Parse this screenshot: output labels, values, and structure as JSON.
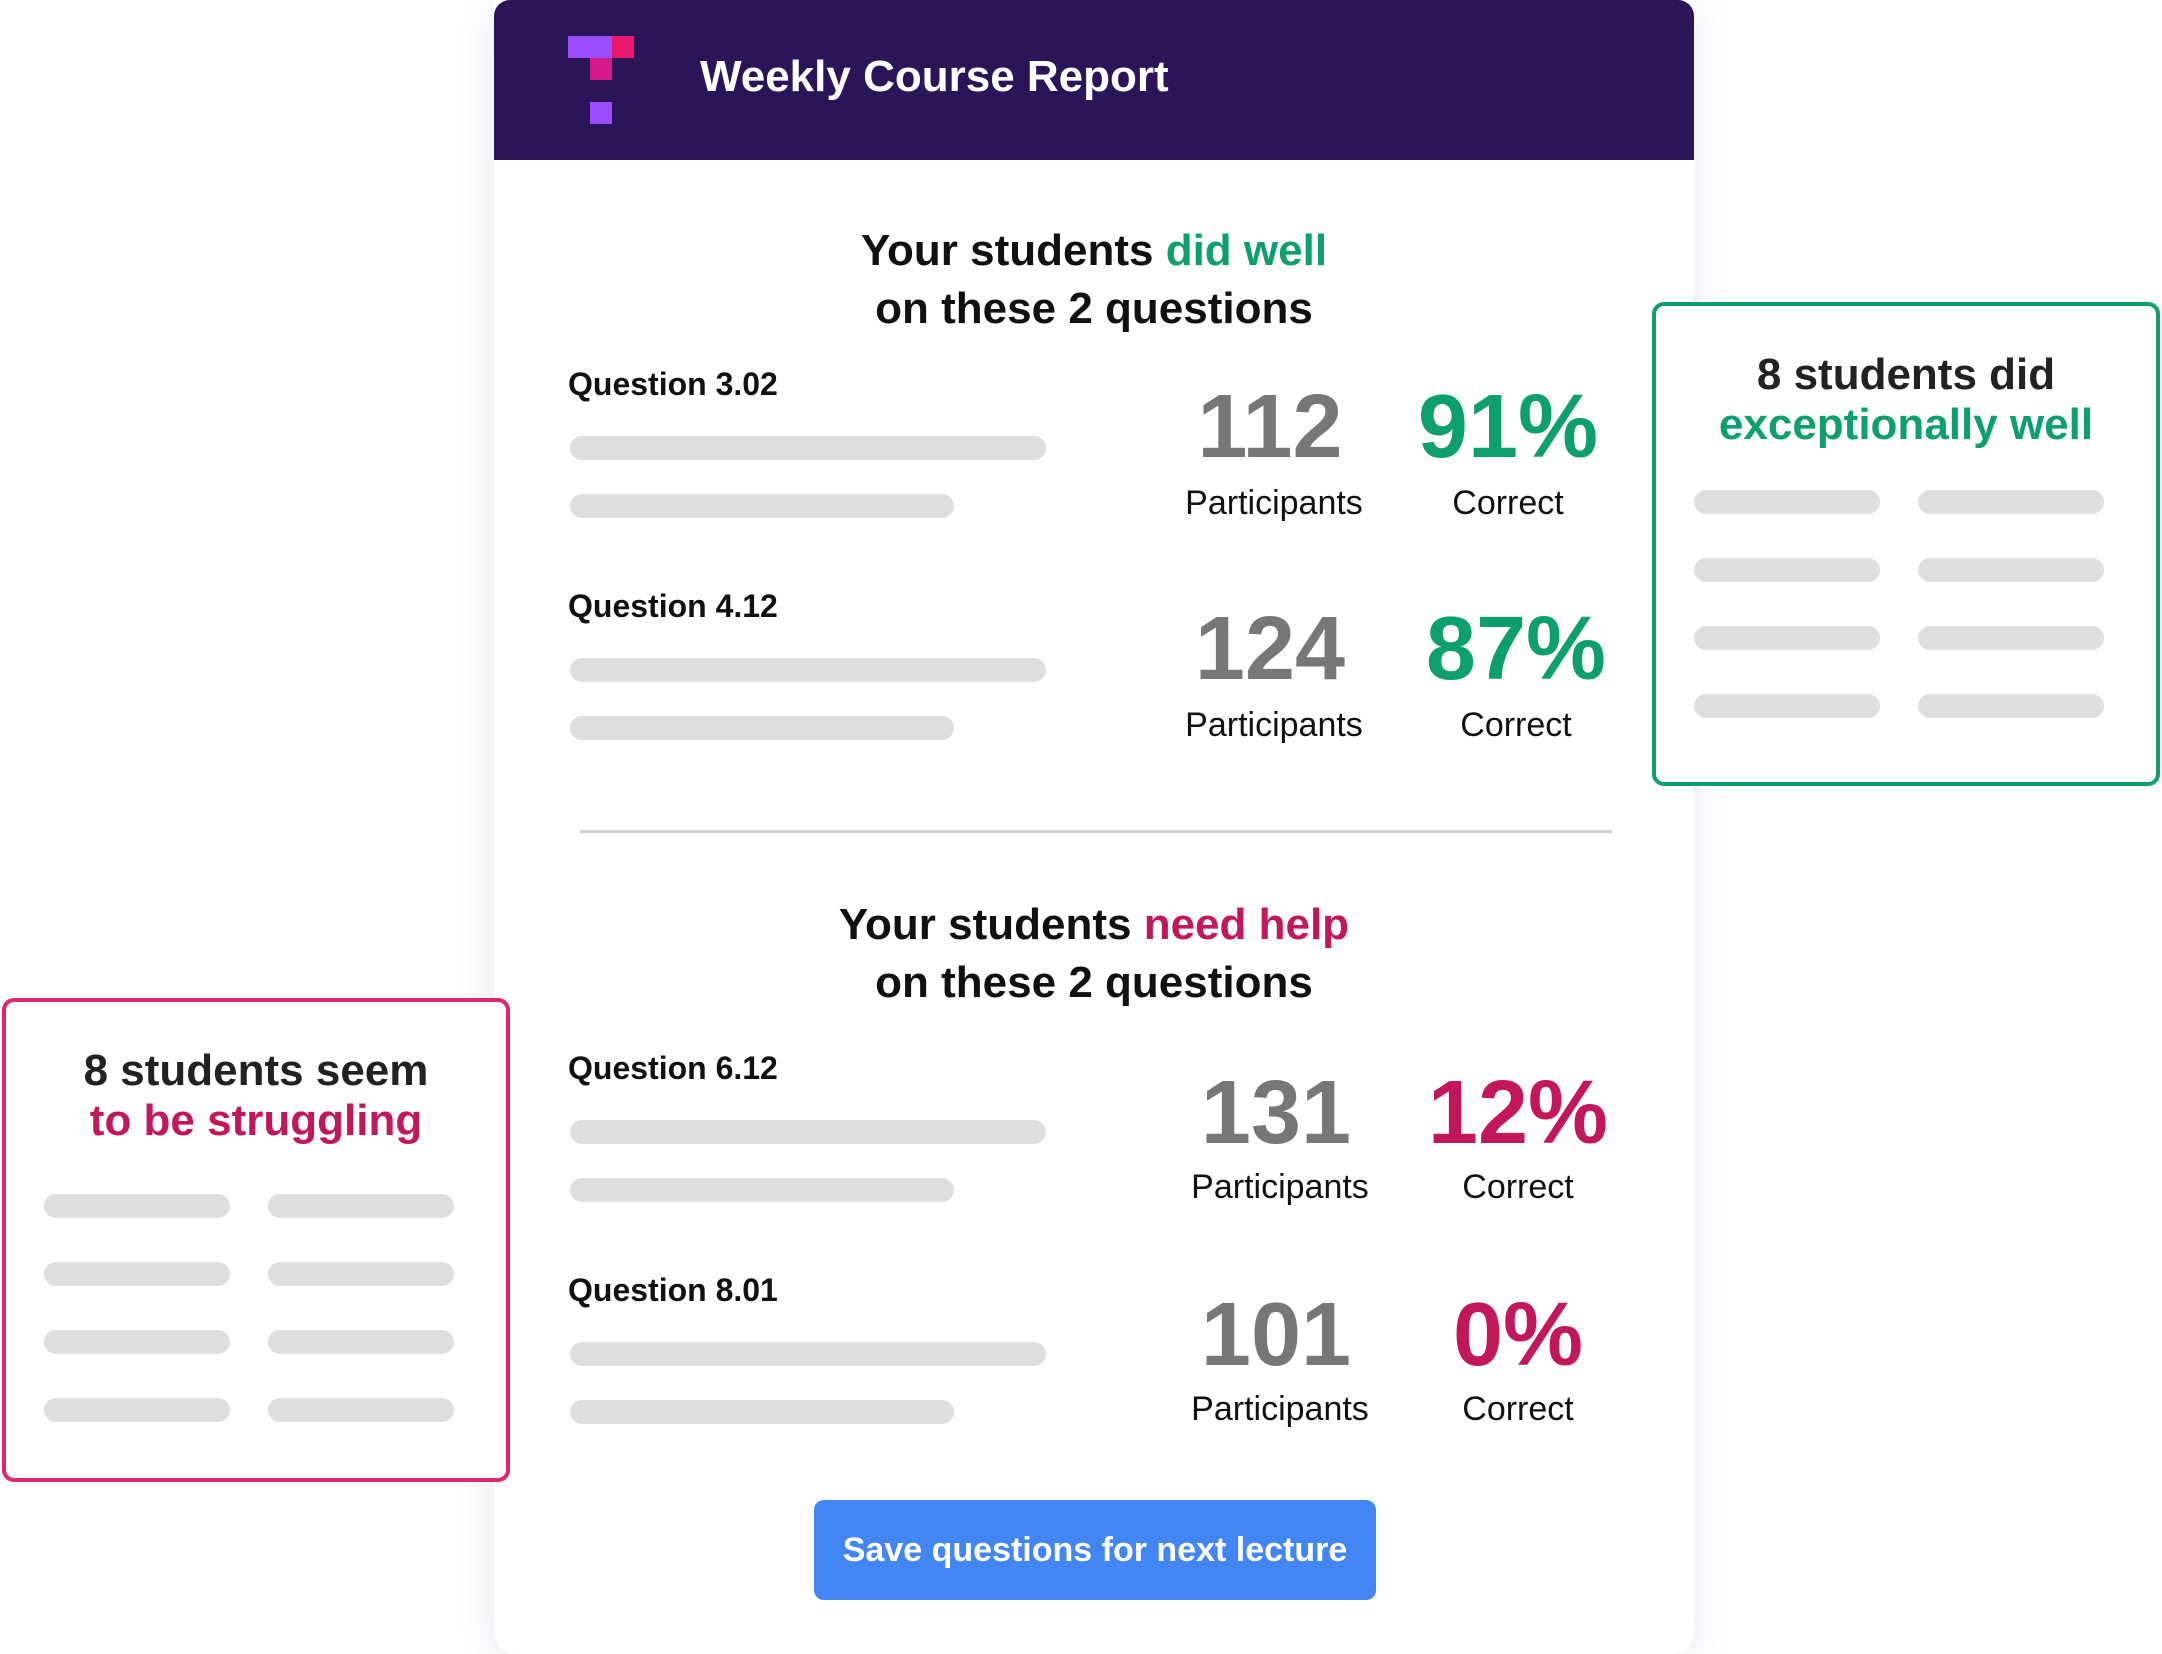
{
  "header": {
    "title": "Weekly Course Report",
    "logo_icon": "brand-logo-icon"
  },
  "colors": {
    "header_bg": "#2a1559",
    "good": "#0e9f6e",
    "bad": "#c2185b",
    "button": "#4286f4"
  },
  "good_section": {
    "heading_prefix": "Your students ",
    "heading_highlight": "did well",
    "heading_line2": "on these 2 questions",
    "questions": [
      {
        "label": "Question 3.02",
        "participants": "112",
        "participants_caption": "Participants",
        "correct": "91%",
        "correct_caption": "Correct"
      },
      {
        "label": "Question 4.12",
        "participants": "124",
        "participants_caption": "Participants",
        "correct": "87%",
        "correct_caption": "Correct"
      }
    ]
  },
  "bad_section": {
    "heading_prefix": "Your students ",
    "heading_highlight": "need help",
    "heading_line2": "on these 2 questions",
    "questions": [
      {
        "label": "Question 6.12",
        "participants": "131",
        "participants_caption": "Participants",
        "correct": "12%",
        "correct_caption": "Correct"
      },
      {
        "label": "Question 8.01",
        "participants": "101",
        "participants_caption": "Participants",
        "correct": "0%",
        "correct_caption": "Correct"
      }
    ]
  },
  "callout_good": {
    "line1": "8 students did",
    "line2": "exceptionally well"
  },
  "callout_bad": {
    "line1_prefix": "8 students ",
    "line1_suffix": "seem",
    "line2": "to be struggling"
  },
  "actions": {
    "save_label": "Save questions for next lecture"
  }
}
